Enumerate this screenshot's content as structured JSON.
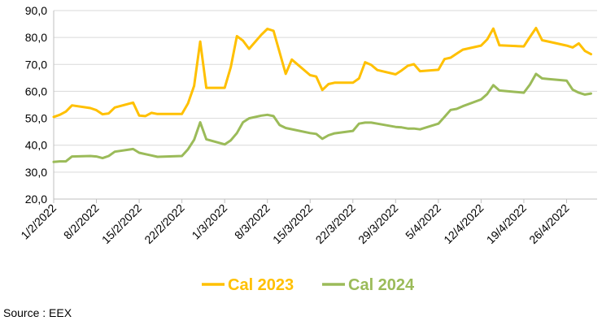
{
  "chart_data": {
    "type": "line",
    "ylim": [
      20,
      90
    ],
    "yticks": [
      "20,0",
      "30,0",
      "40,0",
      "50,0",
      "60,0",
      "70,0",
      "80,0",
      "90,0"
    ],
    "ytick_values": [
      20,
      30,
      40,
      50,
      60,
      70,
      80,
      90
    ],
    "xlim": [
      0,
      89
    ],
    "xticks": [
      {
        "label": "1/2/2022",
        "day": 0
      },
      {
        "label": "8/2/2022",
        "day": 7
      },
      {
        "label": "15/2/2022",
        "day": 14
      },
      {
        "label": "22/2/2022",
        "day": 21
      },
      {
        "label": "1/3/2022",
        "day": 28
      },
      {
        "label": "8/3/2022",
        "day": 35
      },
      {
        "label": "15/3/2022",
        "day": 42
      },
      {
        "label": "22/3/2022",
        "day": 49
      },
      {
        "label": "29/3/2022",
        "day": 56
      },
      {
        "label": "5/4/2022",
        "day": 63
      },
      {
        "label": "12/4/2022",
        "day": 70
      },
      {
        "label": "19/4/2022",
        "day": 77
      },
      {
        "label": "26/4/2022",
        "day": 84
      }
    ],
    "grid": true,
    "legend_placement": "bottom",
    "series": [
      {
        "name": "Cal 2023",
        "color": "#FFC000",
        "points": [
          [
            0,
            50.5
          ],
          [
            1,
            51.3
          ],
          [
            2,
            52.5
          ],
          [
            3,
            54.8
          ],
          [
            6,
            53.8
          ],
          [
            7,
            53
          ],
          [
            8,
            51.5
          ],
          [
            9,
            51.8
          ],
          [
            10,
            54
          ],
          [
            13,
            55.8
          ],
          [
            14,
            51
          ],
          [
            15,
            50.8
          ],
          [
            16,
            52
          ],
          [
            17,
            51.6
          ],
          [
            21,
            51.6
          ],
          [
            22,
            55.5
          ],
          [
            23,
            62
          ],
          [
            24,
            78.5
          ],
          [
            25,
            61.3
          ],
          [
            28,
            61.3
          ],
          [
            29,
            69
          ],
          [
            30,
            80.5
          ],
          [
            31,
            78.8
          ],
          [
            32,
            75.8
          ],
          [
            34,
            81
          ],
          [
            35,
            83.2
          ],
          [
            36,
            82.5
          ],
          [
            38,
            66.5
          ],
          [
            39,
            71.8
          ],
          [
            42,
            66
          ],
          [
            43,
            65.5
          ],
          [
            44,
            60.5
          ],
          [
            45,
            62.7
          ],
          [
            46,
            63.2
          ],
          [
            49,
            63.2
          ],
          [
            50,
            64.8
          ],
          [
            51,
            70.8
          ],
          [
            52,
            69.8
          ],
          [
            53,
            67.9
          ],
          [
            56,
            66.3
          ],
          [
            57,
            67.8
          ],
          [
            58,
            69.5
          ],
          [
            59,
            70.1
          ],
          [
            60,
            67.5
          ],
          [
            63,
            68
          ],
          [
            64,
            72
          ],
          [
            65,
            72.5
          ],
          [
            66,
            74
          ],
          [
            67,
            75.5
          ],
          [
            70,
            77
          ],
          [
            71,
            79.3
          ],
          [
            72,
            83.3
          ],
          [
            73,
            77.1
          ],
          [
            77,
            76.7
          ],
          [
            78,
            80.2
          ],
          [
            79,
            83.5
          ],
          [
            80,
            79
          ],
          [
            81,
            78.5
          ],
          [
            84,
            77
          ],
          [
            85,
            76.3
          ],
          [
            86,
            77.8
          ],
          [
            87,
            75
          ],
          [
            88,
            73.8
          ]
        ]
      },
      {
        "name": "Cal 2024",
        "color": "#9BBB59",
        "points": [
          [
            0,
            33.8
          ],
          [
            1,
            34
          ],
          [
            2,
            34
          ],
          [
            3,
            35.8
          ],
          [
            6,
            36
          ],
          [
            7,
            35.8
          ],
          [
            8,
            35.2
          ],
          [
            9,
            36
          ],
          [
            10,
            37.6
          ],
          [
            13,
            38.6
          ],
          [
            14,
            37.2
          ],
          [
            15,
            36.7
          ],
          [
            16,
            36.2
          ],
          [
            17,
            35.7
          ],
          [
            21,
            36
          ],
          [
            22,
            38.5
          ],
          [
            23,
            42
          ],
          [
            24,
            48.5
          ],
          [
            25,
            42.2
          ],
          [
            28,
            40.3
          ],
          [
            29,
            41.8
          ],
          [
            30,
            44.5
          ],
          [
            31,
            48.5
          ],
          [
            32,
            50
          ],
          [
            34,
            51
          ],
          [
            35,
            51.3
          ],
          [
            36,
            50.8
          ],
          [
            37,
            47.5
          ],
          [
            38,
            46.4
          ],
          [
            42,
            44.5
          ],
          [
            43,
            44.2
          ],
          [
            44,
            42.4
          ],
          [
            45,
            43.7
          ],
          [
            46,
            44.4
          ],
          [
            49,
            45.3
          ],
          [
            50,
            48
          ],
          [
            51,
            48.4
          ],
          [
            52,
            48.4
          ],
          [
            53,
            48
          ],
          [
            56,
            46.8
          ],
          [
            57,
            46.6
          ],
          [
            58,
            46.2
          ],
          [
            59,
            46.2
          ],
          [
            60,
            45.9
          ],
          [
            63,
            48
          ],
          [
            64,
            50.5
          ],
          [
            65,
            53.1
          ],
          [
            66,
            53.5
          ],
          [
            67,
            54.5
          ],
          [
            70,
            57
          ],
          [
            71,
            59
          ],
          [
            72,
            62.3
          ],
          [
            73,
            60.3
          ],
          [
            77,
            59.5
          ],
          [
            78,
            62.5
          ],
          [
            79,
            66.5
          ],
          [
            80,
            64.8
          ],
          [
            81,
            64.6
          ],
          [
            84,
            64
          ],
          [
            85,
            60.6
          ],
          [
            86,
            59.5
          ],
          [
            87,
            58.8
          ],
          [
            88,
            59.2
          ]
        ]
      }
    ]
  },
  "source_note": "Source : EEX"
}
